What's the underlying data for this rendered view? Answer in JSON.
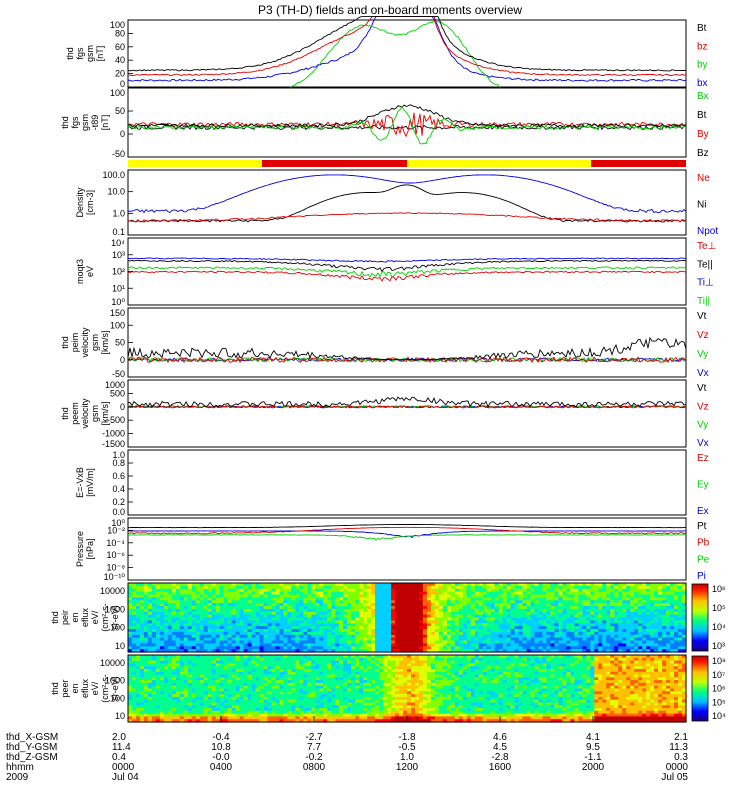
{
  "title": "P3 (TH-D) fields and on-board moments overview",
  "colors": {
    "black": "#000000",
    "red": "#e00000",
    "green": "#00d000",
    "blue": "#0000e0",
    "yellow": "#ffff00"
  },
  "chart_data": [
    {
      "type": "line",
      "ylabel": [
        "thd",
        "fgs",
        "gsm",
        "[nT]"
      ],
      "ylim": [
        0,
        100
      ],
      "yticks": [
        "0",
        "20",
        "40",
        "60",
        "80",
        "100"
      ],
      "series": [
        {
          "name": "Bt"
        },
        {
          "name": "bz"
        },
        {
          "name": "by"
        },
        {
          "name": "bx"
        }
      ]
    },
    {
      "type": "line",
      "ylabel": [
        "thd",
        "fgs",
        "gsm",
        "-t89",
        "[nT]"
      ],
      "ylim": [
        -75,
        100
      ],
      "yticks": [
        "-50",
        "0",
        "50",
        "100"
      ],
      "series": [
        {
          "name": "Bx"
        },
        {
          "name": "Bt"
        },
        {
          "name": "By"
        },
        {
          "name": "Bz"
        }
      ]
    },
    {
      "type": "bar",
      "bar_colors": [
        "yellow",
        "red",
        "yellow",
        "red",
        "yellow"
      ],
      "bar_bounds": [
        0,
        0.24,
        0.5,
        0.83,
        1
      ]
    },
    {
      "type": "line",
      "ylabel": [
        "Density",
        "[cm-3]"
      ],
      "ylim": [
        0.02,
        200
      ],
      "log": true,
      "yticks": [
        "0.1",
        "1.0",
        "10.0",
        "100.0"
      ],
      "series": [
        {
          "name": "Ne"
        },
        {
          "name": "Ni"
        },
        {
          "name": "Npot"
        }
      ]
    },
    {
      "type": "line",
      "ylabel": [
        "moqt3",
        "eV"
      ],
      "ylim": [
        1,
        100000
      ],
      "log": true,
      "yticks": [
        "10⁰",
        "10¹",
        "10²",
        "10³",
        "10⁴"
      ],
      "series": [
        {
          "name": "Te⊥"
        },
        {
          "name": "Te||"
        },
        {
          "name": "Ti⊥"
        },
        {
          "name": "Ti||"
        }
      ]
    },
    {
      "type": "line",
      "ylabel": [
        "thd",
        "peim",
        "velocity",
        "gsm",
        "[km/s]"
      ],
      "ylim": [
        -50,
        150
      ],
      "yticks": [
        "-50",
        "0",
        "50",
        "100",
        "150"
      ],
      "series": [
        {
          "name": "Vt"
        },
        {
          "name": "Vz"
        },
        {
          "name": "Vy"
        },
        {
          "name": "Vx"
        }
      ]
    },
    {
      "type": "line",
      "ylabel": [
        "thd",
        "peem",
        "velocity",
        "gsm",
        "[km/s]"
      ],
      "ylim": [
        -1500,
        1000
      ],
      "yticks": [
        "-1500",
        "-1000",
        "-500",
        "0",
        "500",
        "1000"
      ],
      "series": [
        {
          "name": "Vt"
        },
        {
          "name": "Vz"
        },
        {
          "name": "Vy"
        },
        {
          "name": "Vx"
        }
      ]
    },
    {
      "type": "line",
      "ylabel": [
        "E=-VxB",
        "[mV/m]"
      ],
      "ylim": [
        0,
        1
      ],
      "yticks": [
        "0.0",
        "0.2",
        "0.4",
        "0.6",
        "0.8",
        "1.0"
      ],
      "series": [
        {
          "name": "Ez"
        },
        {
          "name": "Ey"
        },
        {
          "name": "Ex"
        }
      ]
    },
    {
      "type": "line",
      "ylabel": [
        "Pressure",
        "[nPa]"
      ],
      "ylim": [
        1e-10,
        10
      ],
      "log": true,
      "yticks": [
        "10⁻¹⁰",
        "10⁻⁸",
        "10⁻⁶",
        "10⁻⁴",
        "10⁻²",
        "10⁰"
      ],
      "series": [
        {
          "name": "Pt"
        },
        {
          "name": "Pb"
        },
        {
          "name": "Pe"
        },
        {
          "name": "Pi"
        }
      ]
    },
    {
      "type": "heatmap",
      "ylabel": [
        "thd",
        "peir",
        "en",
        "eflux",
        "eV/",
        "(cm²-s-",
        "sr-eV)"
      ],
      "yticks": [
        "10",
        "100",
        "1000",
        "10000"
      ],
      "colorbar": [
        "10³",
        "10⁴",
        "10⁵",
        "10⁶"
      ]
    },
    {
      "type": "heatmap",
      "ylabel": [
        "thd",
        "peer",
        "en",
        "eflux",
        "eV/",
        "(cm²-s-",
        "sr-eV)"
      ],
      "yticks": [
        "10",
        "100",
        "1000",
        "10000"
      ],
      "colorbar": [
        "10⁴",
        "10⁵",
        "10⁶",
        "10⁷",
        "10⁸"
      ]
    }
  ],
  "xaxis": {
    "row_labels": [
      "thd_X-GSM",
      "thd_Y-GSM",
      "thd_Z-GSM",
      "hhmm",
      "2009"
    ],
    "columns": [
      {
        "x": "2.0",
        "y": "11.4",
        "z": "0.4",
        "hhmm": "0000",
        "date": "Jul 04"
      },
      {
        "x": "-0.4",
        "y": "10.8",
        "z": "-0.0",
        "hhmm": "0400",
        "date": ""
      },
      {
        "x": "-2.7",
        "y": "7.7",
        "z": "-0.2",
        "hhmm": "0800",
        "date": ""
      },
      {
        "x": "-1.8",
        "y": "-0.5",
        "z": "1.0",
        "hhmm": "1200",
        "date": ""
      },
      {
        "x": "4.6",
        "y": "4.5",
        "z": "-2.8",
        "hhmm": "1600",
        "date": ""
      },
      {
        "x": "4.1",
        "y": "9.5",
        "z": "-1.1",
        "hhmm": "2000",
        "date": ""
      },
      {
        "x": "2.1",
        "y": "11.3",
        "z": "0.3",
        "hhmm": "0000",
        "date": "Jul 05"
      }
    ]
  }
}
